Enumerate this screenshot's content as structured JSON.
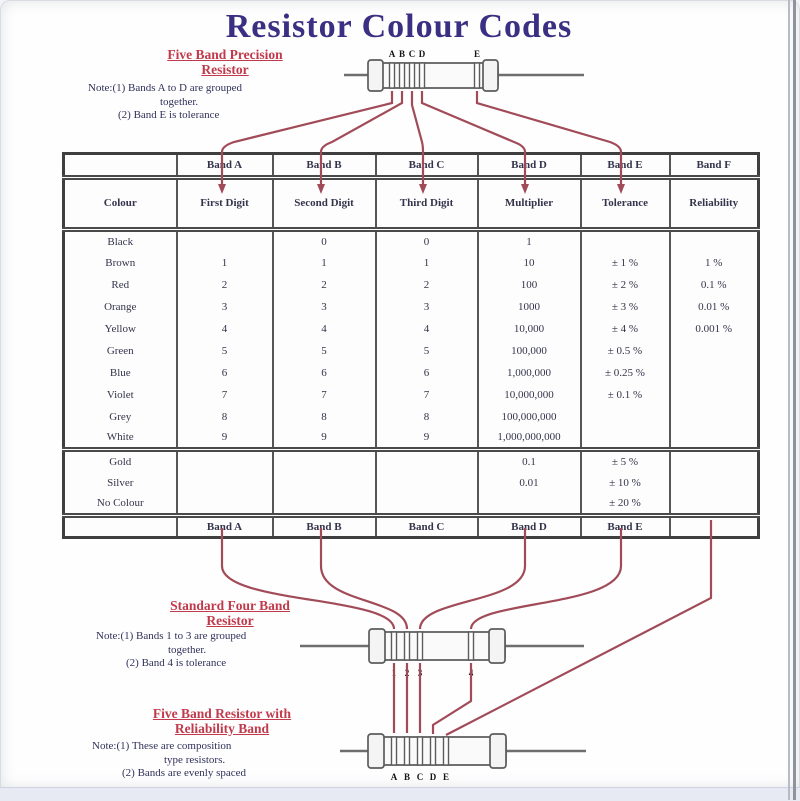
{
  "title": "Resistor Colour Codes",
  "colors": {
    "title_navy": "#3a2f83",
    "heading_red": "#c03a4b",
    "connector_maroon": "#a24b58",
    "table_border_gray": "#4a4a4a",
    "note_navy": "#30305a"
  },
  "sections": {
    "precision": {
      "heading": [
        "Five Band Precision",
        "Resistor"
      ],
      "notes": [
        "Note:(1)  Bands A to D are grouped",
        "together.",
        "(2)  Band E is tolerance"
      ],
      "band_labels": [
        "A",
        "B",
        "C",
        "D",
        "E"
      ]
    },
    "four_band": {
      "heading": [
        "Standard Four Band",
        "Resistor"
      ],
      "notes": [
        "Note:(1)  Bands 1 to 3 are grouped",
        "together.",
        "(2)  Band 4 is tolerance"
      ],
      "band_labels": [
        "1",
        "2",
        "3",
        "4"
      ]
    },
    "reliability": {
      "heading": [
        "Five Band Resistor with",
        "Reliability Band"
      ],
      "notes": [
        "Note:(1)  These are composition",
        "type resistors.",
        "(2)  Bands are evenly spaced"
      ],
      "band_labels": [
        "A",
        "B",
        "C",
        "D",
        "E"
      ]
    }
  },
  "table": {
    "top_band_headers": [
      "",
      "Band A",
      "Band B",
      "Band C",
      "Band D",
      "Band E",
      "Band F"
    ],
    "column_headers": [
      "Colour",
      "First Digit",
      "Second Digit",
      "Third Digit",
      "Multiplier",
      "Tolerance",
      "Reliability"
    ],
    "colour_rows": [
      [
        "Black",
        "",
        "0",
        "0",
        "1",
        "",
        ""
      ],
      [
        "Brown",
        "1",
        "1",
        "1",
        "10",
        "± 1 %",
        "1 %"
      ],
      [
        "Red",
        "2",
        "2",
        "2",
        "100",
        "± 2 %",
        "0.1 %"
      ],
      [
        "Orange",
        "3",
        "3",
        "3",
        "1000",
        "± 3 %",
        "0.01 %"
      ],
      [
        "Yellow",
        "4",
        "4",
        "4",
        "10,000",
        "± 4 %",
        "0.001 %"
      ],
      [
        "Green",
        "5",
        "5",
        "5",
        "100,000",
        "± 0.5 %",
        ""
      ],
      [
        "Blue",
        "6",
        "6",
        "6",
        "1,000,000",
        "± 0.25 %",
        ""
      ],
      [
        "Violet",
        "7",
        "7",
        "7",
        "10,000,000",
        "± 0.1 %",
        ""
      ],
      [
        "Grey",
        "8",
        "8",
        "8",
        "100,000,000",
        "",
        ""
      ],
      [
        "White",
        "9",
        "9",
        "9",
        "1,000,000,000",
        "",
        ""
      ]
    ],
    "metal_rows": [
      [
        "Gold",
        "",
        "",
        "",
        "0.1",
        "± 5 %",
        ""
      ],
      [
        "Silver",
        "",
        "",
        "",
        "0.01",
        "± 10 %",
        ""
      ],
      [
        "No Colour",
        "",
        "",
        "",
        "",
        "± 20 %",
        ""
      ]
    ],
    "footer_band_headers": [
      "",
      "Band A",
      "Band B",
      "Band C",
      "Band D",
      "Band E",
      ""
    ]
  }
}
